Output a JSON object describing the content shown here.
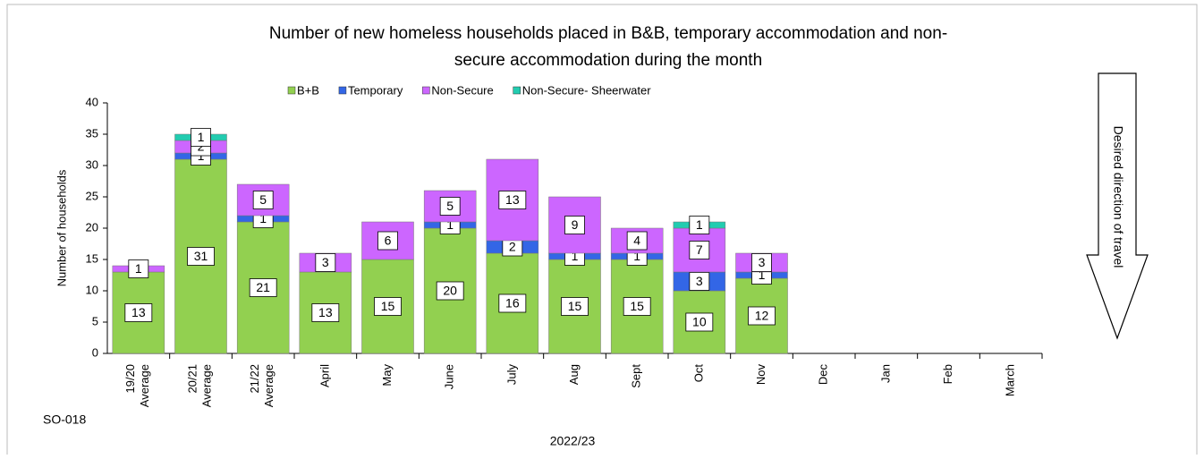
{
  "chart_data": {
    "type": "stacked_bar",
    "title": "Number of new homeless households placed in B&B, temporary accommodation and non-",
    "title_line2": "secure accommodation during the month",
    "y_label": "Number of households",
    "x_label": "2022/23",
    "code": "SO-018",
    "annotation": "Desired direction of travel",
    "categories": [
      "19/20 Average",
      "20/21 Average",
      "21/22 Average",
      "April",
      "May",
      "June",
      "July",
      "Aug",
      "Sept",
      "Oct",
      "Nov",
      "Dec",
      "Jan",
      "Feb",
      "March"
    ],
    "series": [
      {
        "name": "B+B",
        "color": "#92d050",
        "values": [
          13,
          31,
          21,
          13,
          15,
          20,
          16,
          15,
          15,
          10,
          12,
          null,
          null,
          null,
          null
        ]
      },
      {
        "name": "Temporary",
        "color": "#3366e6",
        "values": [
          0,
          1,
          1,
          0,
          0,
          1,
          2,
          1,
          1,
          3,
          1,
          null,
          null,
          null,
          null
        ]
      },
      {
        "name": "Non-Secure",
        "color": "#cc66ff",
        "values": [
          1,
          2,
          5,
          3,
          6,
          5,
          13,
          9,
          4,
          7,
          3,
          null,
          null,
          null,
          null
        ]
      },
      {
        "name": "Non-Secure- Sheerwater",
        "color": "#22ccb0",
        "values": [
          0,
          1,
          0,
          0,
          0,
          0,
          0,
          0,
          0,
          1,
          0,
          null,
          null,
          null,
          null
        ]
      }
    ],
    "ylim": [
      0,
      40
    ],
    "yticks": [
      0,
      5,
      10,
      15,
      20,
      25,
      30,
      35,
      40
    ],
    "legend": "top"
  }
}
